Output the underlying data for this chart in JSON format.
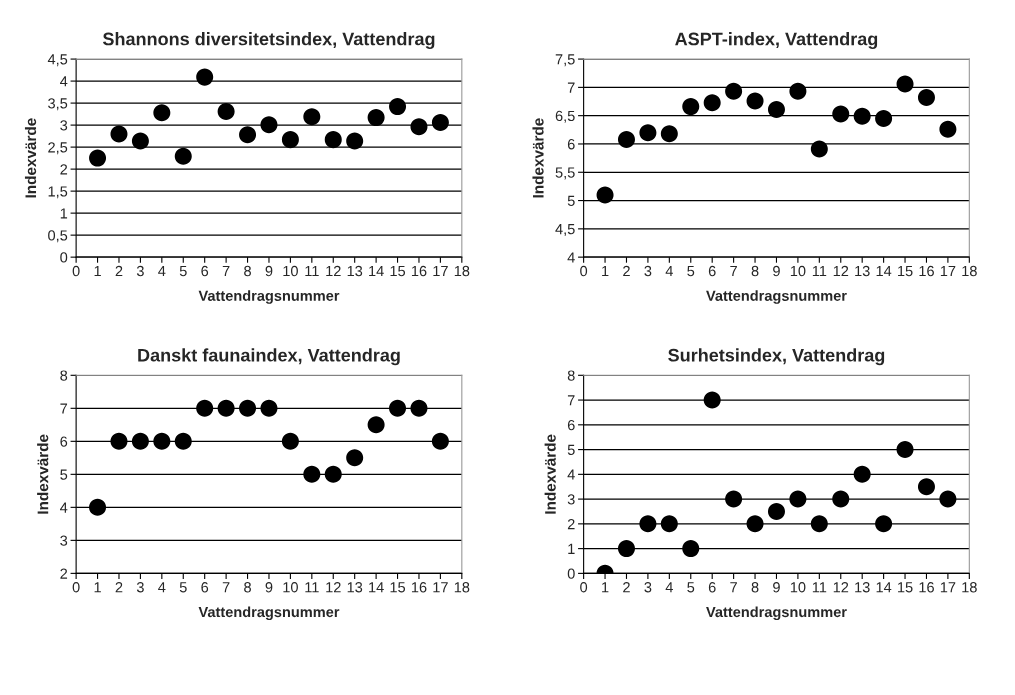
{
  "chart_data": [
    {
      "type": "scatter",
      "title": "Shannons diversitetsindex, Vattendrag",
      "xlabel": "Vattendragsnummer",
      "ylabel": "Indexvärde",
      "x": [
        1,
        2,
        3,
        4,
        5,
        6,
        7,
        8,
        9,
        10,
        11,
        12,
        13,
        14,
        15,
        16,
        17
      ],
      "series": [
        {
          "color": "#000000",
          "values": [
            2.25,
            2.8,
            2.64,
            3.28,
            2.29,
            4.09,
            3.31,
            2.78,
            3.01,
            2.67,
            3.19,
            2.67,
            2.64,
            3.17,
            3.42,
            2.96,
            3.06
          ]
        }
      ],
      "xlim": [
        0,
        18
      ],
      "xticks": [
        0,
        1,
        2,
        3,
        4,
        5,
        6,
        7,
        8,
        9,
        10,
        11,
        12,
        13,
        14,
        15,
        16,
        17,
        18
      ],
      "ylim": [
        0,
        4.5
      ],
      "yticks": [
        0,
        {
          "value": 0.5,
          "label": "0,5"
        },
        1,
        {
          "value": 1.5,
          "label": "1,5"
        },
        2,
        {
          "value": 2.5,
          "label": "2,5"
        },
        3,
        {
          "value": 3.5,
          "label": "3,5"
        },
        4,
        {
          "value": 4.5,
          "label": "4,5"
        }
      ],
      "grid": "y",
      "marker": "circle"
    },
    {
      "type": "scatter",
      "title": "ASPT-index, Vattendrag",
      "xlabel": "Vattendragsnummer",
      "ylabel": "Indexvärde",
      "x": [
        1,
        2,
        3,
        4,
        5,
        6,
        7,
        8,
        9,
        10,
        11,
        12,
        13,
        14,
        15,
        16,
        17
      ],
      "series": [
        {
          "color": "#000000",
          "values": [
            5.1,
            6.08,
            6.2,
            6.18,
            6.66,
            6.73,
            6.93,
            6.76,
            6.61,
            6.93,
            5.91,
            6.53,
            6.49,
            6.45,
            7.06,
            6.82,
            6.26
          ]
        }
      ],
      "xlim": [
        0,
        18
      ],
      "xticks": [
        0,
        1,
        2,
        3,
        4,
        5,
        6,
        7,
        8,
        9,
        10,
        11,
        12,
        13,
        14,
        15,
        16,
        17,
        18
      ],
      "ylim": [
        4,
        7.5
      ],
      "yticks": [
        4,
        {
          "value": 4.5,
          "label": "4,5"
        },
        5,
        {
          "value": 5.5,
          "label": "5,5"
        },
        6,
        {
          "value": 6.5,
          "label": "6,5"
        },
        7,
        {
          "value": 7.5,
          "label": "7,5"
        }
      ],
      "grid": "y",
      "marker": "circle"
    },
    {
      "type": "scatter",
      "title": "Danskt faunaindex, Vattendrag",
      "xlabel": "Vattendragsnummer",
      "ylabel": "Indexvärde",
      "x": [
        1,
        2,
        3,
        4,
        5,
        6,
        7,
        8,
        9,
        10,
        11,
        12,
        13,
        14,
        15,
        16,
        17
      ],
      "series": [
        {
          "color": "#000000",
          "values": [
            4,
            6,
            6,
            6,
            6,
            7,
            7,
            7,
            7,
            6,
            5,
            5,
            5.5,
            6.5,
            7,
            7,
            6
          ]
        }
      ],
      "xlim": [
        0,
        18
      ],
      "xticks": [
        0,
        1,
        2,
        3,
        4,
        5,
        6,
        7,
        8,
        9,
        10,
        11,
        12,
        13,
        14,
        15,
        16,
        17,
        18
      ],
      "ylim": [
        2,
        8
      ],
      "yticks": [
        2,
        3,
        4,
        5,
        6,
        7,
        8
      ],
      "grid": "y",
      "marker": "circle"
    },
    {
      "type": "scatter",
      "title": "Surhetsindex, Vattendrag",
      "xlabel": "Vattendragsnummer",
      "ylabel": "Indexvärde",
      "x": [
        1,
        2,
        3,
        4,
        5,
        6,
        7,
        8,
        9,
        10,
        11,
        12,
        13,
        14,
        15,
        16,
        17
      ],
      "series": [
        {
          "color": "#000000",
          "values": [
            0,
            1,
            2,
            2,
            1,
            7,
            3,
            2,
            2.5,
            3,
            2,
            3,
            4,
            2,
            5,
            3.5,
            3
          ]
        }
      ],
      "xlim": [
        0,
        18
      ],
      "xticks": [
        0,
        1,
        2,
        3,
        4,
        5,
        6,
        7,
        8,
        9,
        10,
        11,
        12,
        13,
        14,
        15,
        16,
        17,
        18
      ],
      "ylim": [
        0,
        8
      ],
      "yticks": [
        0,
        1,
        2,
        3,
        4,
        5,
        6,
        7,
        8
      ],
      "grid": "y",
      "marker": "circle"
    }
  ]
}
